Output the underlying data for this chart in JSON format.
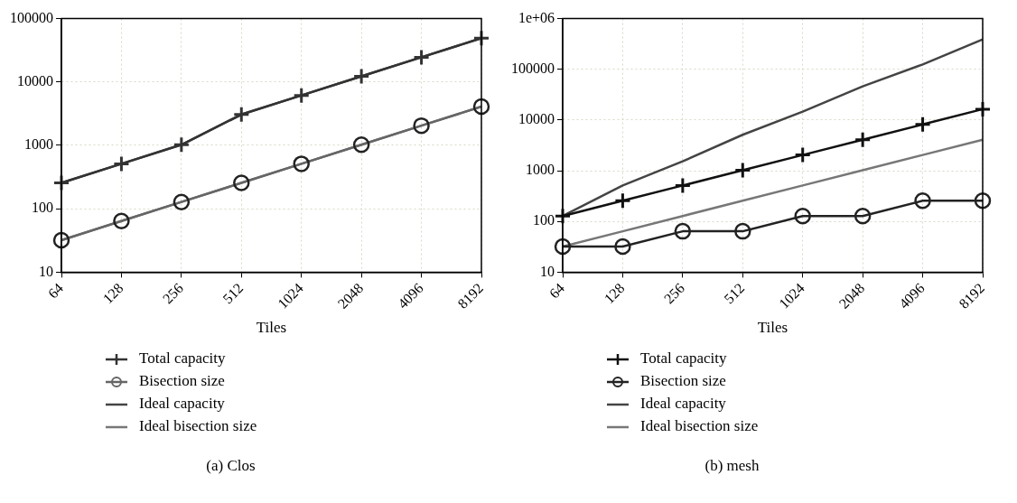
{
  "chart_data": [
    {
      "type": "line",
      "title": "(a) Clos",
      "xlabel": "Tiles",
      "categories": [
        "64",
        "128",
        "256",
        "512",
        "1024",
        "2048",
        "4096",
        "8192"
      ],
      "log": "y",
      "ylim": [
        10,
        100000
      ],
      "yticks": [
        10,
        100,
        1000,
        10000,
        100000
      ],
      "grid": true,
      "legend": "bottom",
      "series": [
        {
          "name": "Total capacity",
          "color": "#333333",
          "marker": "cross",
          "values": [
            256,
            512,
            1024,
            3072,
            6144,
            12288,
            24576,
            49152
          ]
        },
        {
          "name": "Bisection size",
          "color": "#666666",
          "marker": "circle",
          "values": [
            32,
            64,
            128,
            256,
            512,
            1024,
            2048,
            4096
          ]
        },
        {
          "name": "Ideal capacity",
          "color": "#444444",
          "marker": "none",
          "values": [
            256,
            512,
            1024,
            3072,
            6144,
            12288,
            24576,
            49152
          ]
        },
        {
          "name": "Ideal bisection size",
          "color": "#777777",
          "marker": "none",
          "values": [
            32,
            64,
            128,
            256,
            512,
            1024,
            2048,
            4096
          ]
        }
      ]
    },
    {
      "type": "line",
      "title": "(b) mesh",
      "xlabel": "Tiles",
      "categories": [
        "64",
        "128",
        "256",
        "512",
        "1024",
        "2048",
        "4096",
        "8192"
      ],
      "log": "y",
      "ylim": [
        10,
        1000000
      ],
      "yticks": [
        10,
        100,
        1000,
        10000,
        100000,
        {
          "value": 1000000,
          "label": "1e+06"
        }
      ],
      "grid": true,
      "legend": "bottom",
      "series": [
        {
          "name": "Total capacity",
          "color": "#111111",
          "marker": "cross",
          "values": [
            128,
            256,
            512,
            1024,
            2048,
            4096,
            8192,
            16384
          ]
        },
        {
          "name": "Bisection size",
          "color": "#222222",
          "marker": "circle",
          "values": [
            32,
            32,
            64,
            64,
            128,
            128,
            256,
            256
          ]
        },
        {
          "name": "Ideal capacity",
          "color": "#444444",
          "marker": "none",
          "values": [
            128,
            512,
            1536,
            5120,
            14600,
            46000,
            125000,
            390000
          ]
        },
        {
          "name": "Ideal bisection size",
          "color": "#777777",
          "marker": "none",
          "values": [
            32,
            64,
            128,
            256,
            512,
            1024,
            2048,
            4096
          ]
        }
      ]
    }
  ]
}
